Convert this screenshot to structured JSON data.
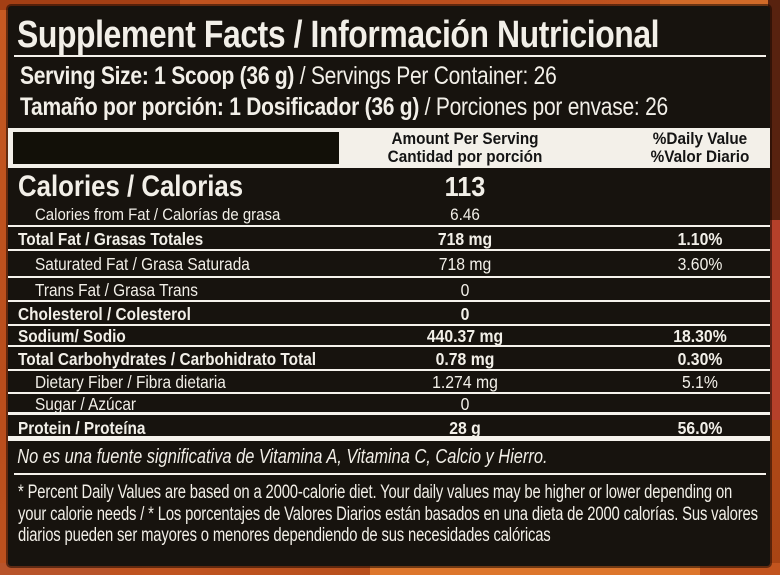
{
  "label": {
    "title": "Supplement Facts / Información Nutricional",
    "serving": {
      "line1_bold": "Serving Size: 1 Scoop (36 g)",
      "line1_regular": " / Servings Per Container: 26",
      "line2_bold": "Tamaño por porción: 1 Dosificador (36 g)",
      "line2_regular": " / Porciones por envase: 26"
    },
    "columns": {
      "amount_en": "Amount Per Serving",
      "amount_es": "Cantidad por porción",
      "dv_en": "%Daily Value",
      "dv_es": "%Valor Diario"
    },
    "rows": [
      {
        "label": "Calories / Calorias",
        "amount": "113",
        "dv": ""
      },
      {
        "label": "Calories from Fat / Calorías de grasa",
        "amount": "6.46",
        "dv": ""
      },
      {
        "label": "Total Fat / Grasas Totales",
        "amount": "718 mg",
        "dv": "1.10%"
      },
      {
        "label": "Saturated Fat / Grasa Saturada",
        "amount": "718 mg",
        "dv": "3.60%"
      },
      {
        "label": "Trans Fat / Grasa Trans",
        "amount": "0",
        "dv": ""
      },
      {
        "label": "Cholesterol / Colesterol",
        "amount": "0",
        "dv": ""
      },
      {
        "label": "Sodium/ Sodio",
        "amount": "440.37 mg",
        "dv": "18.30%"
      },
      {
        "label": "Total Carbohydrates / Carbohidrato Total",
        "amount": "0.78 mg",
        "dv": "0.30%"
      },
      {
        "label": "Dietary Fiber / Fibra dietaria",
        "amount": "1.274 mg",
        "dv": "5.1%"
      },
      {
        "label": "Sugar / Azúcar",
        "amount": "0",
        "dv": ""
      },
      {
        "label": "Protein / Proteína",
        "amount": "28 g",
        "dv": "56.0%"
      }
    ],
    "note": "No es una fuente significativa de  Vitamina A, Vitamina C, Calcio y Hierro.",
    "disclaimer": "* Percent Daily Values are based on a 2000-calorie diet. Your daily values may be higher or lower depending on your calorie needs / * Los porcentajes de Valores Diarios están basados en una dieta de 2000 calorías. Sus valores diarios pueden ser mayores o menores dependiendo de sus necesidades calóricas",
    "colors": {
      "frame_orange": "#bf5220",
      "label_background": "#17130e",
      "text_white": "#f2efe8",
      "header_bar_background": "#f3f0e9",
      "header_bar_text": "#141414"
    }
  }
}
